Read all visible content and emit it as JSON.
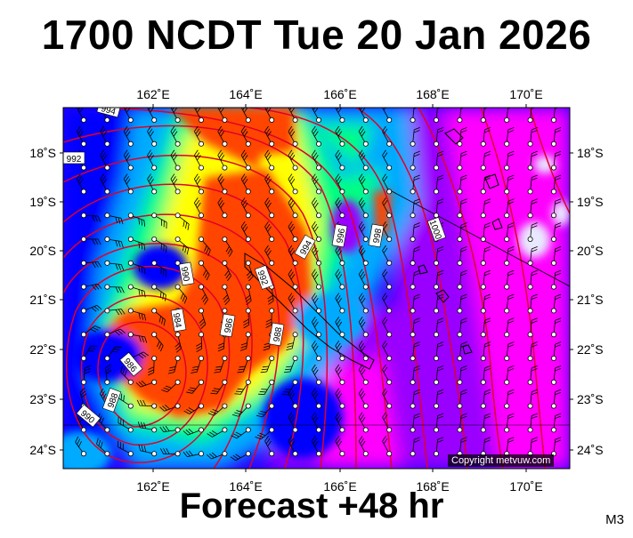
{
  "header": {
    "title": "1700 NCDT Tue 20 Jan 2026"
  },
  "footer": {
    "forecast": "Forecast +48 hr",
    "model": "M3"
  },
  "copyright": "Copyright metvuw.com",
  "axes": {
    "lon_labels": [
      "162˚E",
      "164˚E",
      "166˚E",
      "168˚E",
      "170˚E"
    ],
    "lat_labels": [
      "18˚S",
      "19˚S",
      "20˚S",
      "21˚S",
      "22˚S",
      "23˚S",
      "24˚S"
    ]
  },
  "isobar_labels": [
    "994",
    "992",
    "996",
    "998",
    "1000",
    "994",
    "992",
    "990",
    "988",
    "986",
    "984",
    "986",
    "988",
    "990"
  ],
  "colors": {
    "calm": "#ff00ff",
    "light": "#9a00ff",
    "moderate": "#0000ff",
    "fresh": "#00aaff",
    "strong": "#00ff7f",
    "gale": "#ffff00",
    "storm": "#ff4500",
    "isobar": "#e0002a",
    "coast": "#000000"
  }
}
